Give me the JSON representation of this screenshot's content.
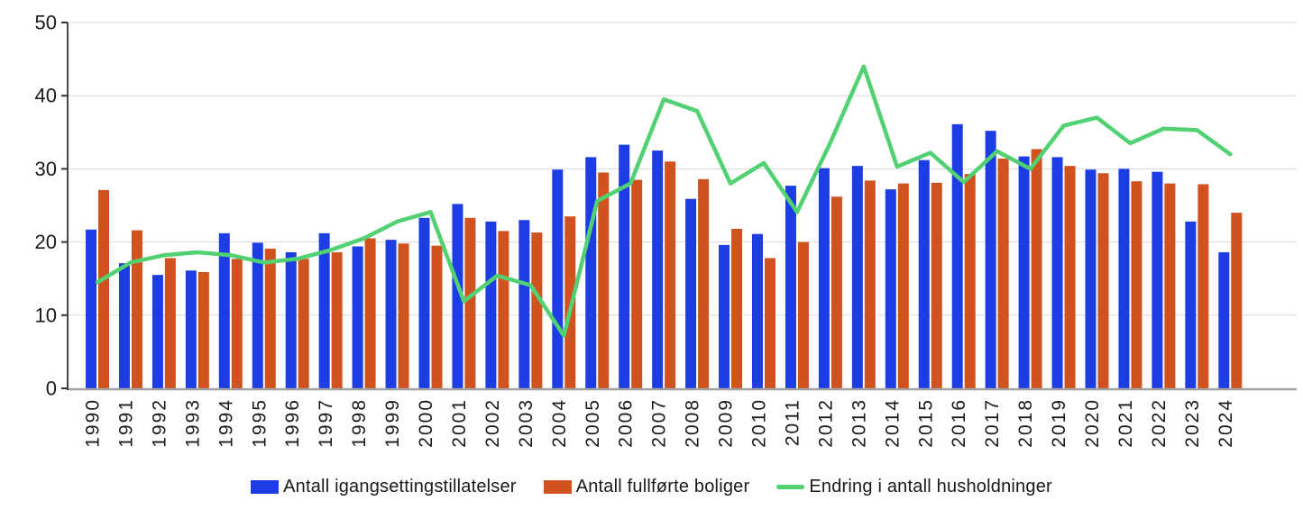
{
  "chart_data": {
    "type": "bar+line",
    "title": "",
    "categories": [
      "1990",
      "1991",
      "1992",
      "1993",
      "1994",
      "1995",
      "1996",
      "1997",
      "1998",
      "1999",
      "2000",
      "2001",
      "2002",
      "2003",
      "2004",
      "2005",
      "2006",
      "2007",
      "2008",
      "2009",
      "2010",
      "2011",
      "2012",
      "2013",
      "2014",
      "2015",
      "2016",
      "2017",
      "2018",
      "2019",
      "2020",
      "2021",
      "2022",
      "2023",
      "2024"
    ],
    "series": [
      {
        "name": "Antall igangsettingstillatelser",
        "type": "bar",
        "color": "#1b3de3",
        "values": [
          21.7,
          17.1,
          15.5,
          16.1,
          21.2,
          19.9,
          18.6,
          21.2,
          19.4,
          20.3,
          23.3,
          25.2,
          22.8,
          23.0,
          29.9,
          31.6,
          33.3,
          32.5,
          25.9,
          19.6,
          21.1,
          27.7,
          30.1,
          30.4,
          27.2,
          31.2,
          36.1,
          35.2,
          31.7,
          31.6,
          29.9,
          30.0,
          29.6,
          22.8,
          18.6
        ]
      },
      {
        "name": "Antall fullførte boliger",
        "type": "bar",
        "color": "#d0521f",
        "values": [
          27.1,
          21.6,
          17.8,
          15.9,
          17.7,
          19.1,
          17.7,
          18.6,
          20.5,
          19.8,
          19.5,
          23.3,
          21.5,
          21.3,
          23.5,
          29.5,
          28.5,
          31.0,
          28.6,
          21.8,
          17.8,
          20.0,
          26.2,
          28.4,
          28.0,
          28.1,
          29.3,
          31.4,
          32.7,
          30.4,
          29.4,
          28.3,
          28.0,
          27.9,
          24.0
        ]
      },
      {
        "name": "Endring i antall husholdninger",
        "type": "line",
        "color": "#52d173",
        "values": [
          14.5,
          17.2,
          18.2,
          18.6,
          18.2,
          17.2,
          17.7,
          18.9,
          20.5,
          22.8,
          24.1,
          11.9,
          15.4,
          14.1,
          7.2,
          25.6,
          28.0,
          39.5,
          37.9,
          28.0,
          30.8,
          24.1,
          33.6,
          44.0,
          30.3,
          32.2,
          28.2,
          32.4,
          30.0,
          35.9,
          37.0,
          33.5,
          35.5,
          35.3,
          32.0
        ]
      }
    ],
    "y_axis": {
      "min": 0,
      "max": 50,
      "ticks": [
        0,
        10,
        20,
        30,
        40,
        50
      ]
    },
    "x_axis": {
      "label_rotation": -90
    },
    "grid": true,
    "legend_position": "bottom",
    "colors": {
      "gridline": "#d9d9d9",
      "baseline": "#a3a3a3",
      "axis": "#333333",
      "text": "#1a1a1a",
      "background": "#ffffff"
    }
  }
}
